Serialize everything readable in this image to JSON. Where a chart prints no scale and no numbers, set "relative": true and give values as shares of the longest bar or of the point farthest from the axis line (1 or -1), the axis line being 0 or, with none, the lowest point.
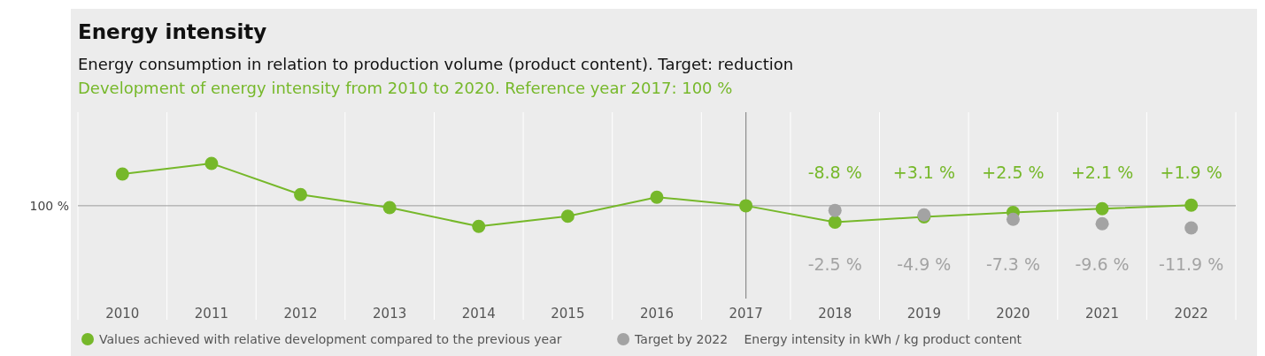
{
  "chart_data": {
    "type": "line",
    "relative": true,
    "title": "Energy intensity",
    "subtitle": "Energy consumption in relation to production volume (product content). Target: reduction",
    "annotations": [
      "Development of energy intensity from 2010 to 2020. Reference year 2017: 100 %",
      "Energy intensity in kWh / kg product content",
      "100 %",
      {
        "text": "-8.8 %",
        "x": "2018",
        "y": 0.09
      },
      {
        "text": "+3.1 %",
        "x": "2019",
        "y": 0.171
      },
      {
        "text": "+2.5 %",
        "x": "2020",
        "y": 0.24
      },
      {
        "text": "+2.1 %",
        "x": "2021",
        "y": 0.298
      },
      {
        "text": "+1.9 %",
        "x": "2022",
        "y": 0.353
      },
      {
        "text": "-2.5 %",
        "x": "2018",
        "y": 0.272
      },
      {
        "text": "-4.9 %",
        "x": "2019",
        "y": 0.202
      },
      {
        "text": "-7.3 %",
        "x": "2020",
        "y": 0.133
      },
      {
        "text": "-9.6 %",
        "x": "2021",
        "y": 0.066
      },
      {
        "text": "-11.9 %",
        "x": "2022",
        "y": 0
      }
    ],
    "categories": [
      "2010",
      "2011",
      "2012",
      "2013",
      "2014",
      "2015",
      "2016",
      "2017",
      "2018",
      "2019",
      "2020",
      "2021",
      "2022"
    ],
    "series": [
      {
        "name": "Values achieved with relative development compared to the previous year",
        "color": "#76b82a",
        "values": [
          0.835,
          1,
          0.517,
          0.315,
          0.023,
          0.182,
          0.477,
          0.344,
          0.09,
          0.171,
          0.24,
          0.298,
          0.353
        ]
      },
      {
        "name": "Target by 2022",
        "type": "scatter",
        "color": "#a3a3a3",
        "values": [
          null,
          null,
          null,
          null,
          null,
          null,
          null,
          null,
          0.272,
          0.202,
          0.133,
          0.066,
          0
        ]
      }
    ],
    "ref_lines": [
      {
        "axis": "x",
        "value": "2017",
        "color": "#8c8c8c"
      },
      {
        "axis": "y",
        "value": 0.344,
        "color": "#9a9a9a"
      }
    ],
    "grid": "x",
    "legend": "bottom left",
    "marker": "circle",
    "line_style": "solid"
  }
}
